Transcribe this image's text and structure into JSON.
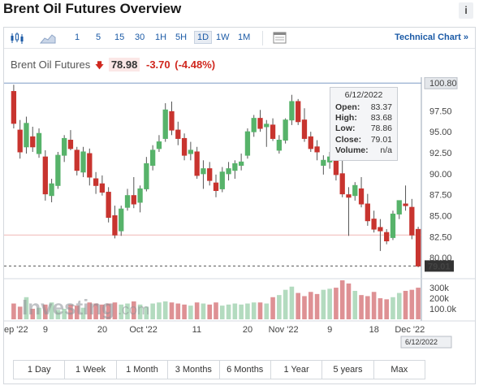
{
  "widget": {
    "title": "Brent Oil Futures Overview",
    "info_label": "i"
  },
  "toolbar": {
    "timeframes": [
      "1",
      "5",
      "15",
      "30",
      "1H",
      "5H",
      "1D",
      "1W",
      "1M"
    ],
    "active_timeframe": "1D",
    "technical_link": "Technical Chart »"
  },
  "quote": {
    "name": "Brent Oil Futures",
    "price": "78.98",
    "change": "-3.70",
    "change_pct": "(-4.48%)"
  },
  "tooltip": {
    "date": "6/12/2022",
    "rows": [
      {
        "label": "Open:",
        "value": "83.37"
      },
      {
        "label": "High:",
        "value": "83.68"
      },
      {
        "label": "Low:",
        "value": "78.86"
      },
      {
        "label": "Close:",
        "value": "79.01"
      },
      {
        "label": "Volume:",
        "value": "n/a"
      }
    ]
  },
  "watermark": {
    "brand": "Investing",
    "suffix": ".com"
  },
  "colors": {
    "up": "#57b36a",
    "down": "#c8342f",
    "vol_up": "#b3dbbf",
    "vol_down": "#de9194",
    "accent": "#1b5aa6",
    "badge_dark": "#333333",
    "badge_light": "#e3e6ea"
  },
  "chart_data": {
    "type": "candlestick",
    "price_axis": [
      "100.80",
      "97.50",
      "95.00",
      "92.50",
      "90.00",
      "87.50",
      "85.00",
      "82.50",
      "80.00"
    ],
    "price_range": [
      77.5,
      101.5
    ],
    "last_price_label": "79.01",
    "last_price": 79.01,
    "high_marker": 100.8,
    "reference_level": 82.7,
    "volume_axis": [
      "300k",
      "200k",
      "100.0k"
    ],
    "volume_max": 370,
    "x_labels": [
      "ep '22",
      "9",
      "20",
      "Oct '22",
      "11",
      "20",
      "Nov '22",
      "9",
      "18",
      "Dec '22"
    ],
    "cursor_date_label": "6/12/2022",
    "candles": [
      [
        99.8,
        100.6,
        95.4,
        96.0
      ],
      [
        95.2,
        96.4,
        91.8,
        92.6
      ],
      [
        93.2,
        96.8,
        92.4,
        96.0
      ],
      [
        94.4,
        95.6,
        92.6,
        93.2
      ],
      [
        92.4,
        95.4,
        91.9,
        94.8
      ],
      [
        92.0,
        92.8,
        86.8,
        87.6
      ],
      [
        87.4,
        89.4,
        86.6,
        88.8
      ],
      [
        88.6,
        92.6,
        88.2,
        92.2
      ],
      [
        92.2,
        94.6,
        91.4,
        94.2
      ],
      [
        94.0,
        95.2,
        92.8,
        93.0
      ],
      [
        92.8,
        93.2,
        89.8,
        90.4
      ],
      [
        90.2,
        93.2,
        89.6,
        92.6
      ],
      [
        92.4,
        93.0,
        88.6,
        89.6
      ],
      [
        89.4,
        90.2,
        87.6,
        88.6
      ],
      [
        88.8,
        89.8,
        87.4,
        87.8
      ],
      [
        87.8,
        88.4,
        84.2,
        84.8
      ],
      [
        85.0,
        86.2,
        82.3,
        82.7
      ],
      [
        83.2,
        86.2,
        82.6,
        85.8
      ],
      [
        86.0,
        88.2,
        85.6,
        87.4
      ],
      [
        87.4,
        89.6,
        85.9,
        86.4
      ],
      [
        86.6,
        88.6,
        85.4,
        88.2
      ],
      [
        88.2,
        92.0,
        87.9,
        91.2
      ],
      [
        91.0,
        93.4,
        90.4,
        92.8
      ],
      [
        93.0,
        94.6,
        92.6,
        93.8
      ],
      [
        94.2,
        98.4,
        93.8,
        97.6
      ],
      [
        97.4,
        98.6,
        94.6,
        95.2
      ],
      [
        95.2,
        96.2,
        93.4,
        94.2
      ],
      [
        94.2,
        94.8,
        91.6,
        92.2
      ],
      [
        92.4,
        93.8,
        91.6,
        92.8
      ],
      [
        92.6,
        93.2,
        89.4,
        89.8
      ],
      [
        90.0,
        91.6,
        88.2,
        90.6
      ],
      [
        90.6,
        91.4,
        88.6,
        89.2
      ],
      [
        88.9,
        89.9,
        87.2,
        88.0
      ],
      [
        88.2,
        90.8,
        87.8,
        90.2
      ],
      [
        90.0,
        91.4,
        89.2,
        90.6
      ],
      [
        90.4,
        91.6,
        89.4,
        91.2
      ],
      [
        91.0,
        92.4,
        90.4,
        91.4
      ],
      [
        92.2,
        95.4,
        91.8,
        95.0
      ],
      [
        95.0,
        97.0,
        94.4,
        96.6
      ],
      [
        96.6,
        97.6,
        95.0,
        95.4
      ],
      [
        95.6,
        96.4,
        93.2,
        95.9
      ],
      [
        95.8,
        96.6,
        93.9,
        94.2
      ],
      [
        92.8,
        94.6,
        92.4,
        94.0
      ],
      [
        94.0,
        96.6,
        93.6,
        96.4
      ],
      [
        96.4,
        99.4,
        95.8,
        98.6
      ],
      [
        98.6,
        98.9,
        95.8,
        96.2
      ],
      [
        96.4,
        97.8,
        93.8,
        94.2
      ],
      [
        94.4,
        95.0,
        92.6,
        93.0
      ],
      [
        93.2,
        94.0,
        91.6,
        92.6
      ],
      [
        91.0,
        92.2,
        89.9,
        91.6
      ],
      [
        91.4,
        92.6,
        90.6,
        92.0
      ],
      [
        92.2,
        93.0,
        89.2,
        89.9
      ],
      [
        90.0,
        91.6,
        87.2,
        87.6
      ],
      [
        87.5,
        88.4,
        82.6,
        87.2
      ],
      [
        87.4,
        89.0,
        86.8,
        88.6
      ],
      [
        88.2,
        89.6,
        86.0,
        86.4
      ],
      [
        86.4,
        87.6,
        83.8,
        84.4
      ],
      [
        84.6,
        85.6,
        83.0,
        83.4
      ],
      [
        83.6,
        84.6,
        80.8,
        83.2
      ],
      [
        83.0,
        83.4,
        81.6,
        82.0
      ],
      [
        82.4,
        85.6,
        82.1,
        85.2
      ],
      [
        85.2,
        86.6,
        84.6,
        86.8
      ],
      [
        86.4,
        88.6,
        85.6,
        86.2
      ],
      [
        86.0,
        87.0,
        82.2,
        82.7
      ],
      [
        83.37,
        83.68,
        78.86,
        79.01
      ]
    ],
    "volume": [
      150,
      120,
      210,
      100,
      110,
      140,
      160,
      90,
      100,
      140,
      130,
      110,
      160,
      150,
      140,
      150,
      160,
      140,
      150,
      170,
      140,
      120,
      150,
      160,
      170,
      160,
      150,
      140,
      130,
      160,
      150,
      140,
      160,
      130,
      140,
      150,
      140,
      150,
      160,
      160,
      150,
      210,
      230,
      280,
      310,
      250,
      220,
      260,
      240,
      280,
      290,
      300,
      370,
      340,
      270,
      230,
      220,
      260,
      200,
      190,
      210,
      250,
      270,
      280,
      300
    ]
  },
  "period_bar": [
    "1 Day",
    "1 Week",
    "1 Month",
    "3 Months",
    "6 Months",
    "1 Year",
    "5 years",
    "Max"
  ]
}
